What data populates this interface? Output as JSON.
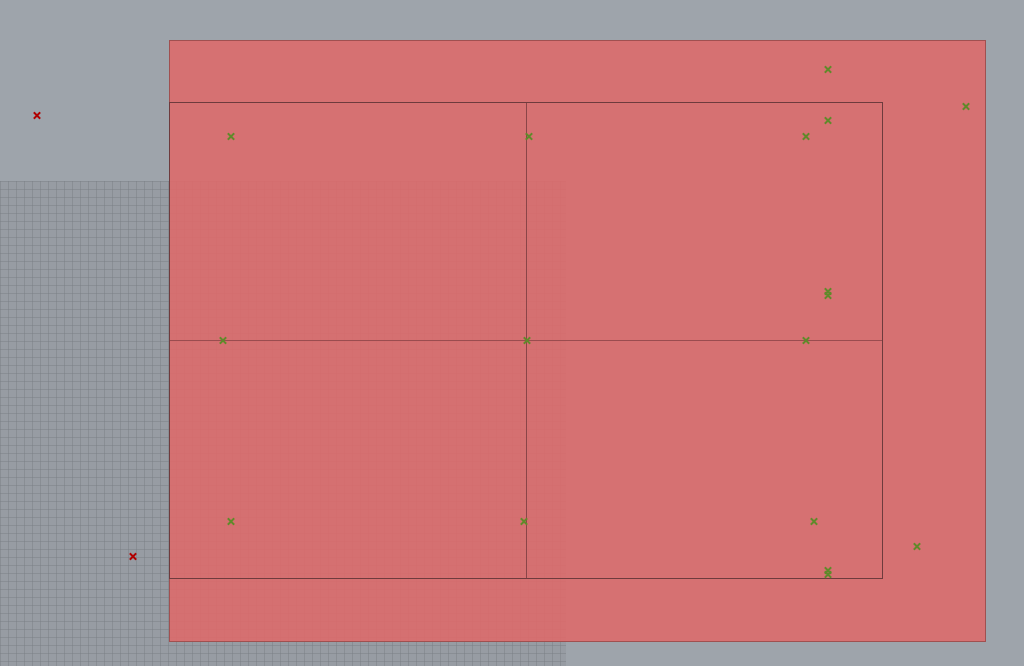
{
  "viewport": {
    "background_color": "#9ea4ab",
    "grid_color": "#979ca3",
    "outer_region_color": "#d97474",
    "inner_frame_color": "#6e3b3d",
    "selected_point_color": "#5f8a2a",
    "unselected_point_color": "#b00000",
    "point_icon": "x-marker-icon"
  }
}
